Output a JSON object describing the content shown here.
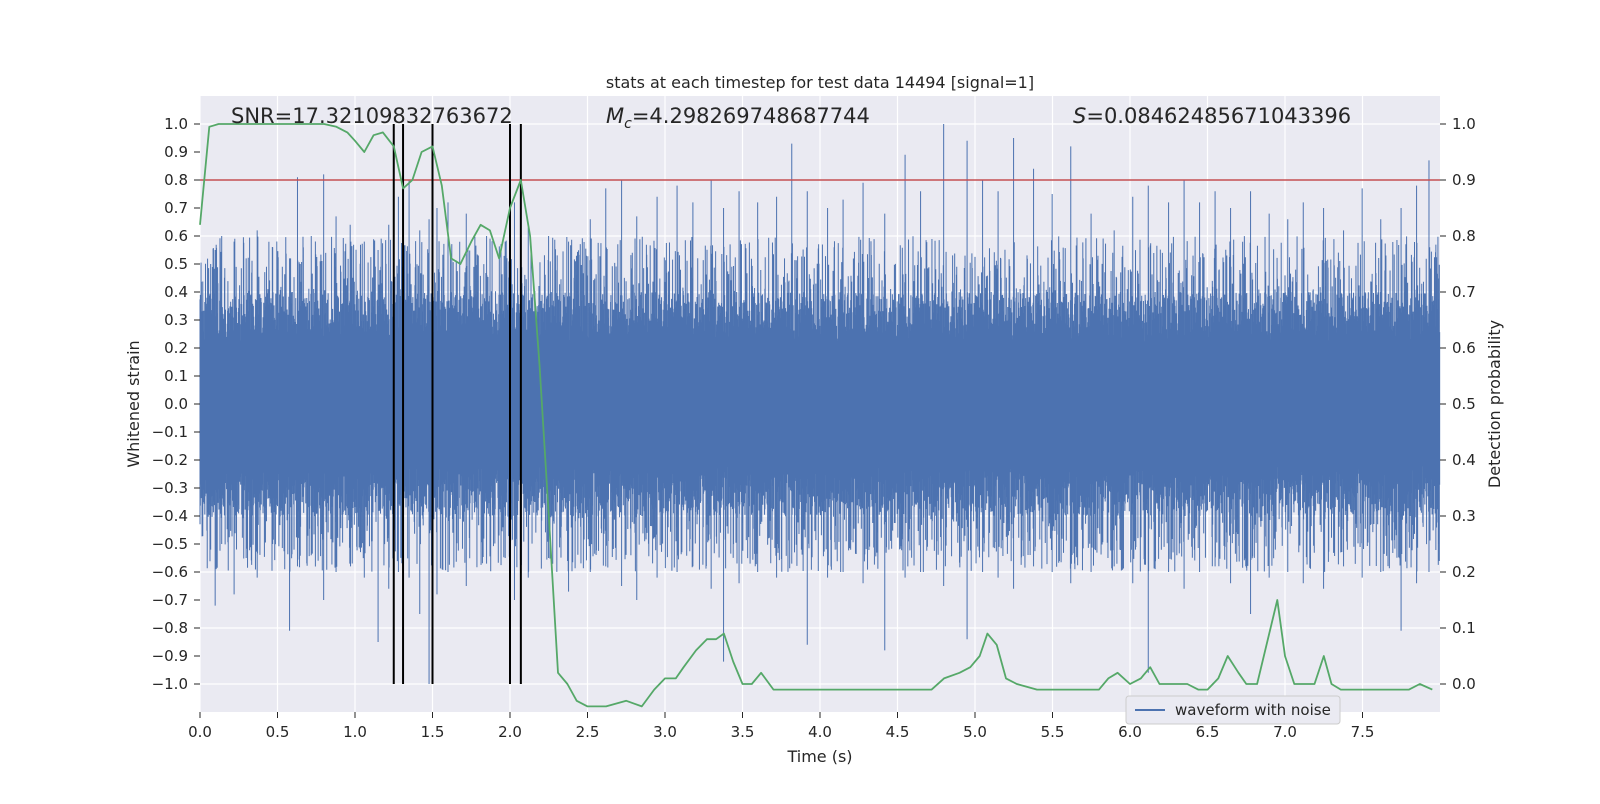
{
  "chart_data": {
    "type": "line",
    "title": "stats at each timestep for test data 14494 [signal=1]",
    "xlabel": "Time (s)",
    "ylabel": "Whitened strain",
    "ylabel_right": "Detection probability",
    "xlim": [
      0,
      8
    ],
    "ylim": [
      -1.1,
      1.1
    ],
    "ylim_right": [
      -0.05,
      1.05
    ],
    "x_ticks": [
      0.0,
      0.5,
      1.0,
      1.5,
      2.0,
      2.5,
      3.0,
      3.5,
      4.0,
      4.5,
      5.0,
      5.5,
      6.0,
      6.5,
      7.0,
      7.5
    ],
    "x_tick_labels": [
      "0.0",
      "0.5",
      "1.0",
      "1.5",
      "2.0",
      "2.5",
      "3.0",
      "3.5",
      "4.0",
      "4.5",
      "5.0",
      "5.5",
      "6.0",
      "6.5",
      "7.0",
      "7.5"
    ],
    "y_ticks": [
      1.0,
      0.9,
      0.8,
      0.7,
      0.6,
      0.5,
      0.4,
      0.3,
      0.2,
      0.1,
      0.0,
      -0.1,
      -0.2,
      -0.3,
      -0.4,
      -0.5,
      -0.6,
      -0.7,
      -0.8,
      -0.9,
      -1.0
    ],
    "y_tick_labels": [
      "1.0",
      "0.9",
      "0.8",
      "0.7",
      "0.6",
      "0.5",
      "0.4",
      "0.3",
      "0.2",
      "0.1",
      "0.0",
      "−0.1",
      "−0.2",
      "−0.3",
      "−0.4",
      "−0.5",
      "−0.6",
      "−0.7",
      "−0.8",
      "−0.9",
      "−1.0"
    ],
    "y_right_ticks": [
      1.0,
      0.9,
      0.8,
      0.7,
      0.6,
      0.5,
      0.4,
      0.3,
      0.2,
      0.1,
      0.0
    ],
    "y_right_tick_labels": [
      "1.0",
      "0.9",
      "0.8",
      "0.7",
      "0.6",
      "0.5",
      "0.4",
      "0.3",
      "0.2",
      "0.1",
      "0.0"
    ],
    "annotations": {
      "snr": "SNR=17.32109832763672",
      "mc_symbol": "M",
      "mc_sub": "c",
      "mc_value": "=4.298269748687744",
      "s_symbol": "S",
      "s_value": "=0.08462485671043396"
    },
    "legend": {
      "placement": "lower-right",
      "entries": [
        "waveform with noise"
      ]
    },
    "threshold": {
      "value": 0.9,
      "axis": "right",
      "color": "#c44e52"
    },
    "vertical_lines": [
      1.25,
      1.31,
      1.5,
      2.0,
      2.07
    ],
    "waveform": {
      "name": "waveform with noise",
      "color": "#4c72b0",
      "sample_rate": 2048,
      "core_envelope": 0.4,
      "note": "dense noisy strain filling roughly -0.4..0.4 with spikes up to 1.0 / down to -1.0",
      "spikes": [
        [
          0.07,
          0.5,
          -0.52
        ],
        [
          0.1,
          0.55,
          -0.72
        ],
        [
          0.14,
          0.6,
          -0.5
        ],
        [
          0.22,
          0.58,
          -0.68
        ],
        [
          0.3,
          0.52,
          -0.55
        ],
        [
          0.37,
          0.62,
          -0.62
        ],
        [
          0.47,
          0.56,
          -0.5
        ],
        [
          0.58,
          0.52,
          -0.81
        ],
        [
          0.63,
          0.81,
          -0.58
        ],
        [
          0.72,
          0.6,
          -0.54
        ],
        [
          0.8,
          0.82,
          -0.7
        ],
        [
          0.88,
          0.67,
          -0.6
        ],
        [
          0.97,
          0.64,
          -0.51
        ],
        [
          1.06,
          0.58,
          -0.62
        ],
        [
          1.15,
          0.55,
          -0.85
        ],
        [
          1.22,
          0.64,
          -0.66
        ],
        [
          1.28,
          0.74,
          -0.6
        ],
        [
          1.35,
          0.8,
          -0.62
        ],
        [
          1.42,
          0.62,
          -0.75
        ],
        [
          1.48,
          0.66,
          -1.0
        ],
        [
          1.53,
          0.7,
          -0.68
        ],
        [
          1.6,
          0.72,
          -0.6
        ],
        [
          1.72,
          0.68,
          -0.65
        ],
        [
          1.85,
          0.6,
          -0.57
        ],
        [
          1.97,
          0.58,
          -0.55
        ],
        [
          2.03,
          0.72,
          -0.7
        ],
        [
          2.12,
          0.63,
          -0.62
        ],
        [
          2.25,
          0.6,
          -0.55
        ],
        [
          2.38,
          0.58,
          -0.67
        ],
        [
          2.52,
          0.66,
          -0.6
        ],
        [
          2.62,
          0.77,
          -0.58
        ],
        [
          2.72,
          0.8,
          -0.65
        ],
        [
          2.82,
          0.67,
          -0.7
        ],
        [
          2.95,
          0.74,
          -0.62
        ],
        [
          3.08,
          0.78,
          -0.6
        ],
        [
          3.18,
          0.72,
          -0.58
        ],
        [
          3.3,
          0.8,
          -0.66
        ],
        [
          3.38,
          0.7,
          -0.92
        ],
        [
          3.48,
          0.76,
          -0.64
        ],
        [
          3.6,
          0.72,
          -0.6
        ],
        [
          3.72,
          0.74,
          -0.62
        ],
        [
          3.82,
          0.93,
          -0.57
        ],
        [
          3.92,
          0.76,
          -0.86
        ],
        [
          4.05,
          0.7,
          -0.62
        ],
        [
          4.15,
          0.73,
          -0.6
        ],
        [
          4.28,
          0.79,
          -0.64
        ],
        [
          4.42,
          0.68,
          -0.88
        ],
        [
          4.55,
          0.89,
          -0.62
        ],
        [
          4.65,
          0.76,
          -0.6
        ],
        [
          4.8,
          1.0,
          -0.65
        ],
        [
          4.95,
          0.94,
          -0.84
        ],
        [
          5.05,
          0.8,
          -0.6
        ],
        [
          5.15,
          0.76,
          -0.62
        ],
        [
          5.25,
          0.95,
          -0.66
        ],
        [
          5.38,
          0.84,
          -0.58
        ],
        [
          5.5,
          0.75,
          -0.6
        ],
        [
          5.62,
          0.92,
          -0.64
        ],
        [
          5.75,
          0.68,
          -0.6
        ],
        [
          5.9,
          0.62,
          -0.58
        ],
        [
          6.02,
          0.74,
          -0.64
        ],
        [
          6.12,
          0.78,
          -0.96
        ],
        [
          6.25,
          0.72,
          -0.6
        ],
        [
          6.35,
          0.8,
          -0.66
        ],
        [
          6.45,
          0.72,
          -0.6
        ],
        [
          6.55,
          0.76,
          -0.58
        ],
        [
          6.65,
          0.7,
          -0.64
        ],
        [
          6.78,
          0.76,
          -0.75
        ],
        [
          6.9,
          0.68,
          -0.62
        ],
        [
          7.02,
          0.66,
          -0.6
        ],
        [
          7.12,
          0.72,
          -0.64
        ],
        [
          7.25,
          0.7,
          -0.66
        ],
        [
          7.38,
          0.62,
          -0.58
        ],
        [
          7.5,
          0.77,
          -0.62
        ],
        [
          7.62,
          0.66,
          -0.6
        ],
        [
          7.75,
          0.7,
          -0.81
        ],
        [
          7.85,
          0.78,
          -0.64
        ],
        [
          7.93,
          0.87,
          -0.6
        ]
      ]
    },
    "series": [
      {
        "name": "Detection probability",
        "axis": "right",
        "color": "#55a868",
        "x": [
          0.0,
          0.06,
          0.12,
          0.2,
          0.3,
          0.4,
          0.5,
          0.6,
          0.7,
          0.8,
          0.88,
          0.95,
          1.0,
          1.06,
          1.12,
          1.18,
          1.25,
          1.31,
          1.37,
          1.43,
          1.5,
          1.56,
          1.62,
          1.68,
          1.75,
          1.81,
          1.87,
          1.93,
          2.0,
          2.07,
          2.13,
          2.19,
          2.25,
          2.31,
          2.37,
          2.43,
          2.5,
          2.62,
          2.75,
          2.85,
          2.93,
          3.0,
          3.07,
          3.12,
          3.2,
          3.27,
          3.33,
          3.38,
          3.44,
          3.5,
          3.56,
          3.62,
          3.7,
          3.8,
          4.0,
          4.2,
          4.4,
          4.6,
          4.72,
          4.8,
          4.9,
          4.97,
          5.03,
          5.08,
          5.14,
          5.2,
          5.27,
          5.4,
          5.5,
          5.6,
          5.8,
          5.86,
          5.92,
          6.0,
          6.07,
          6.13,
          6.19,
          6.25,
          6.31,
          6.37,
          6.44,
          6.5,
          6.57,
          6.63,
          6.7,
          6.75,
          6.82,
          6.95,
          7.0,
          7.06,
          7.13,
          7.19,
          7.25,
          7.3,
          7.36,
          7.5,
          7.7,
          7.8,
          7.87,
          7.95
        ],
        "values": [
          0.82,
          0.995,
          1.0,
          1.0,
          1.0,
          1.0,
          1.0,
          1.0,
          1.0,
          1.0,
          0.995,
          0.985,
          0.97,
          0.95,
          0.98,
          0.985,
          0.96,
          0.885,
          0.9,
          0.95,
          0.96,
          0.89,
          0.76,
          0.75,
          0.79,
          0.82,
          0.81,
          0.76,
          0.85,
          0.9,
          0.8,
          0.57,
          0.3,
          0.02,
          0.0,
          -0.03,
          -0.04,
          -0.04,
          -0.03,
          -0.04,
          -0.01,
          0.01,
          0.01,
          0.03,
          0.06,
          0.08,
          0.08,
          0.09,
          0.04,
          0.0,
          0.0,
          0.02,
          -0.01,
          -0.01,
          -0.01,
          -0.01,
          -0.01,
          -0.01,
          -0.01,
          0.01,
          0.02,
          0.03,
          0.05,
          0.09,
          0.07,
          0.01,
          0.0,
          -0.01,
          -0.01,
          -0.01,
          -0.01,
          0.01,
          0.02,
          0.0,
          0.01,
          0.03,
          0.0,
          0.0,
          0.0,
          0.0,
          -0.01,
          -0.01,
          0.01,
          0.05,
          0.02,
          0.0,
          0.0,
          0.15,
          0.05,
          0.0,
          0.0,
          0.0,
          0.05,
          0.0,
          -0.01,
          -0.01,
          -0.01,
          -0.01,
          0.0,
          -0.01
        ]
      }
    ]
  }
}
